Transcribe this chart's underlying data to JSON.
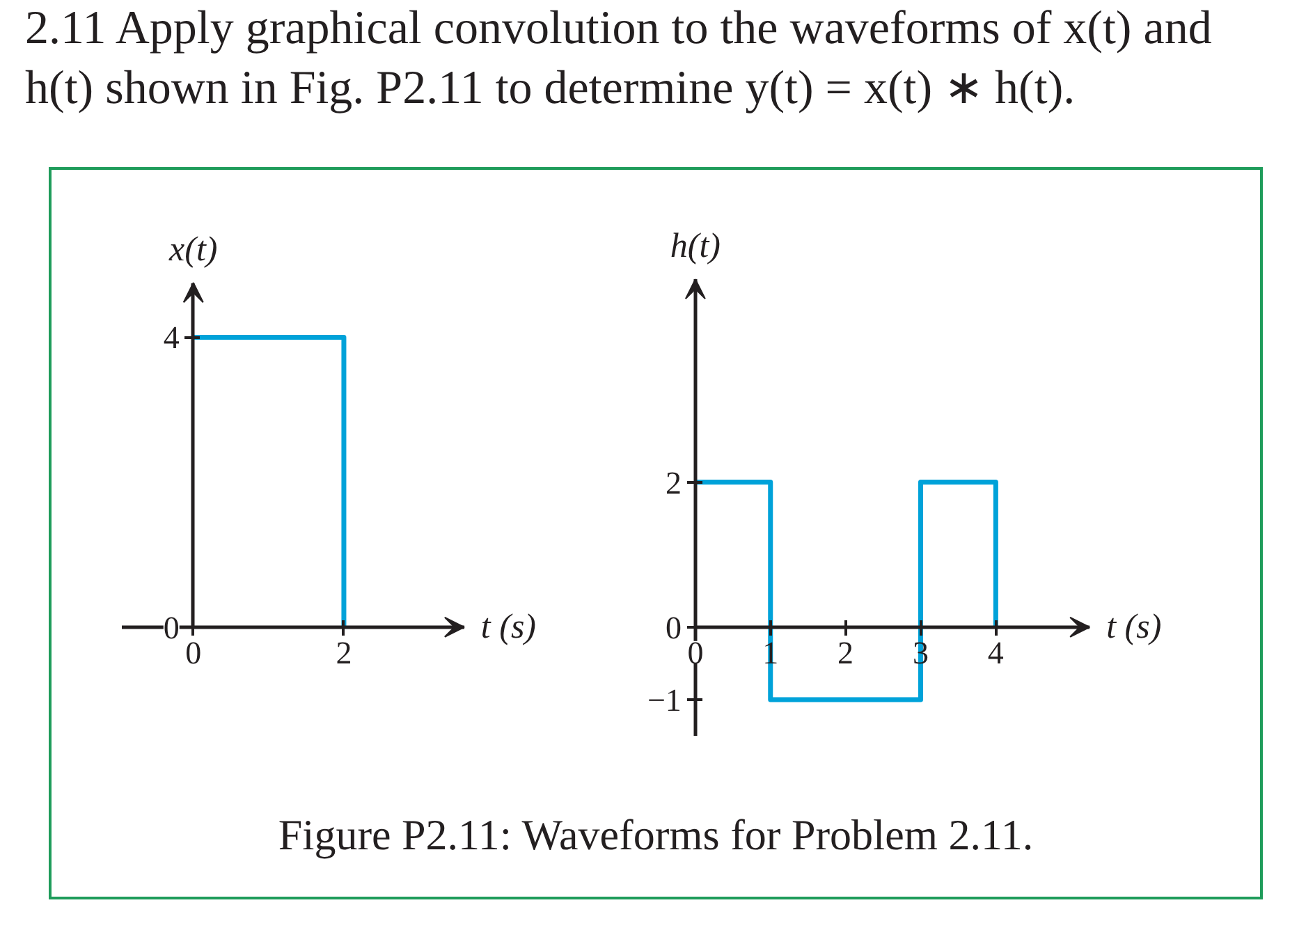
{
  "chart_data": [
    {
      "type": "line",
      "title": "2.11 Apply graphical convolution to the waveforms of x(t) and h(t) shown in Fig. P2.11 to determine y(t) = x(t) ∗ h(t).",
      "xlabel": "t (s)",
      "ylabel": "x(t)",
      "x": [
        0,
        2,
        2
      ],
      "series": [
        {
          "color": "#00a2d9",
          "values": [
            4,
            4,
            0
          ]
        }
      ],
      "xlim": [
        -0.95,
        3.6
      ],
      "ylim": [
        0,
        4.75
      ],
      "xticks": [
        0,
        2
      ],
      "yticks": [
        0,
        4
      ],
      "grid": false
    },
    {
      "type": "line",
      "xlabel": "t (s)",
      "ylabel": "h(t)",
      "x": [
        0,
        1,
        1,
        3,
        3,
        4,
        4
      ],
      "series": [
        {
          "color": "#00a2d9",
          "values": [
            2,
            2,
            -1,
            -1,
            2,
            2,
            0
          ]
        }
      ],
      "xlim": [
        0,
        5.25
      ],
      "ylim": [
        -1.5,
        4.8
      ],
      "xticks": [
        0,
        1,
        2,
        3,
        4
      ],
      "yticks": [
        {
          "value": -1,
          "label": "−1"
        },
        0,
        2
      ],
      "grid": false,
      "annotations": [
        "Figure P2.11: Waveforms for Problem 2.11."
      ]
    }
  ]
}
